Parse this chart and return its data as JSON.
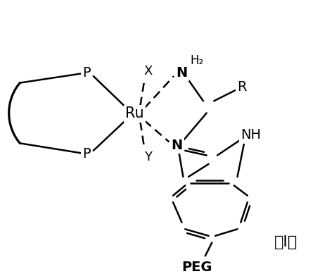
{
  "background_color": "#ffffff",
  "line_color": "#000000",
  "line_width": 1.8,
  "label_I": "（I）",
  "label_PEG": "PEG",
  "label_Ru": "Ru",
  "label_P1": "P",
  "label_P2": "P",
  "label_X": "X",
  "label_Y": "Y",
  "label_N1": "N",
  "label_N2": "N",
  "label_NH": "NH",
  "label_H2": "H₂",
  "label_R": "R",
  "font_size": 13
}
